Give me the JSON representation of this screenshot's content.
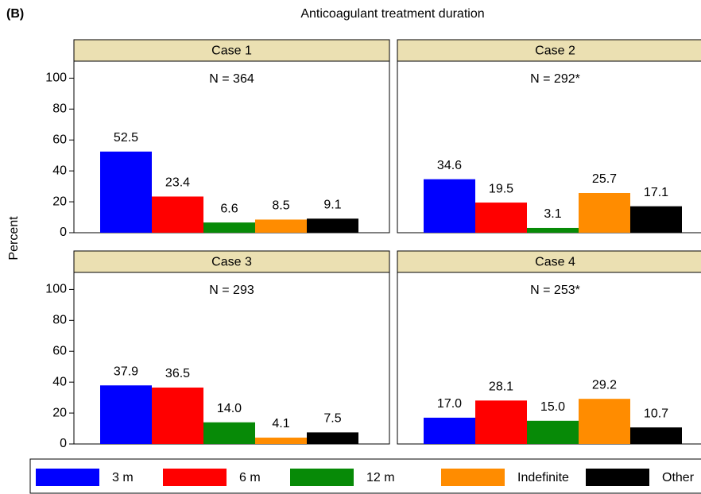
{
  "chart_data": {
    "type": "bar",
    "figure_label": "(B)",
    "title": "Anticoagulant treatment duration",
    "ylabel": "Percent",
    "categories": [
      "3 m",
      "6 m",
      "12 m",
      "Indefinite",
      "Other"
    ],
    "colors": [
      "#0000ff",
      "#ff0000",
      "#078a07",
      "#ff8c00",
      "#000000"
    ],
    "ylim": [
      0,
      111
    ],
    "yticks": [
      0,
      20,
      40,
      60,
      80,
      100
    ],
    "panels": [
      {
        "title": "Case 1",
        "subtitle": "N = 364",
        "values": [
          52.5,
          23.4,
          6.6,
          8.5,
          9.1
        ],
        "value_labels": [
          "52.5",
          "23.4",
          "6.6",
          "8.5",
          "9.1"
        ]
      },
      {
        "title": "Case 2",
        "subtitle": "N = 292*",
        "values": [
          34.6,
          19.5,
          3.1,
          25.7,
          17.1
        ],
        "value_labels": [
          "34.6",
          "19.5",
          "3.1",
          "25.7",
          "17.1"
        ]
      },
      {
        "title": "Case 3",
        "subtitle": "N = 293",
        "values": [
          37.9,
          36.5,
          14.0,
          4.1,
          7.5
        ],
        "value_labels": [
          "37.9",
          "36.5",
          "14.0",
          "4.1",
          "7.5"
        ]
      },
      {
        "title": "Case 4",
        "subtitle": "N = 253*",
        "values": [
          17.0,
          28.1,
          15.0,
          29.2,
          10.7
        ],
        "value_labels": [
          "17.0",
          "28.1",
          "15.0",
          "29.2",
          "10.7"
        ]
      }
    ]
  }
}
